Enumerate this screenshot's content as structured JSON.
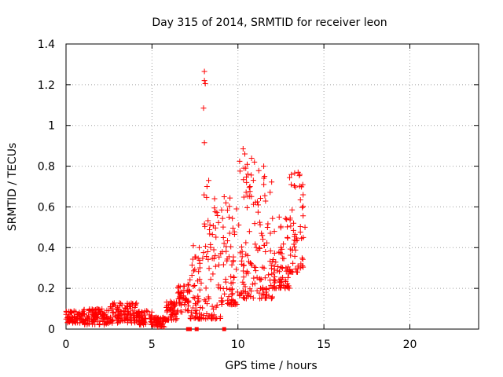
{
  "chart_data": {
    "type": "scatter",
    "title": "Day 315 of 2014, SRMTID for receiver leon",
    "xlabel": "GPS time / hours",
    "ylabel": "SRMTID / TECUs",
    "xlim": [
      0,
      24
    ],
    "ylim": [
      0,
      1.4
    ],
    "x_ticks": [
      0,
      5,
      10,
      15,
      20
    ],
    "x_tick_labels": [
      "0",
      "5",
      "10",
      "15",
      "20"
    ],
    "y_ticks": [
      0,
      0.2,
      0.4,
      0.6,
      0.8,
      1,
      1.2,
      1.4
    ],
    "y_tick_labels": [
      "0",
      "0.2",
      "0.4",
      "0.6",
      "0.8",
      "1",
      "1.2",
      "1.4"
    ],
    "grid": true,
    "marker": "plus",
    "marker_color": "#ff0000",
    "segments": [
      {
        "x_start": 0.0,
        "x_end": 1.0,
        "y_low": 0.03,
        "y_high": 0.09
      },
      {
        "x_start": 1.0,
        "x_end": 2.5,
        "y_low": 0.02,
        "y_high": 0.1
      },
      {
        "x_start": 2.5,
        "x_end": 4.2,
        "y_low": 0.03,
        "y_high": 0.13
      },
      {
        "x_start": 4.2,
        "x_end": 5.0,
        "y_low": 0.02,
        "y_high": 0.09
      },
      {
        "x_start": 5.0,
        "x_end": 5.8,
        "y_low": 0.01,
        "y_high": 0.06
      },
      {
        "x_start": 5.8,
        "x_end": 6.5,
        "y_low": 0.04,
        "y_high": 0.14
      },
      {
        "x_start": 6.5,
        "x_end": 7.2,
        "y_low": 0.08,
        "y_high": 0.22
      },
      {
        "x_start": 7.2,
        "x_end": 8.0,
        "y_low": 0.05,
        "y_high": 0.45
      },
      {
        "x_start": 8.0,
        "x_end": 9.0,
        "y_low": 0.05,
        "y_high": 0.7
      },
      {
        "x_start": 9.0,
        "x_end": 10.0,
        "y_low": 0.12,
        "y_high": 0.65
      },
      {
        "x_start": 10.0,
        "x_end": 11.0,
        "y_low": 0.15,
        "y_high": 0.85
      },
      {
        "x_start": 11.0,
        "x_end": 12.0,
        "y_low": 0.15,
        "y_high": 0.78
      },
      {
        "x_start": 12.0,
        "x_end": 13.0,
        "y_low": 0.2,
        "y_high": 0.55
      },
      {
        "x_start": 13.0,
        "x_end": 13.8,
        "y_low": 0.28,
        "y_high": 0.77
      }
    ],
    "highlights": [
      {
        "x": 8.05,
        "y": 1.265
      },
      {
        "x": 8.05,
        "y": 1.22
      },
      {
        "x": 8.1,
        "y": 1.205
      },
      {
        "x": 8.0,
        "y": 1.085
      },
      {
        "x": 8.05,
        "y": 0.915
      },
      {
        "x": 8.3,
        "y": 0.73
      },
      {
        "x": 8.2,
        "y": 0.7
      },
      {
        "x": 10.3,
        "y": 0.885
      },
      {
        "x": 10.4,
        "y": 0.86
      },
      {
        "x": 10.35,
        "y": 0.79
      },
      {
        "x": 11.5,
        "y": 0.8
      },
      {
        "x": 11.55,
        "y": 0.75
      },
      {
        "x": 13.5,
        "y": 0.77
      },
      {
        "x": 13.6,
        "y": 0.76
      },
      {
        "x": 9.2,
        "y": 0.65
      },
      {
        "x": 9.3,
        "y": 0.62
      },
      {
        "x": 10.7,
        "y": 0.7
      },
      {
        "x": 12.4,
        "y": 0.55
      },
      {
        "x": 13.9,
        "y": 0.5
      },
      {
        "x": 13.8,
        "y": 0.45
      }
    ],
    "zero_markers": [
      {
        "x": 7.1,
        "y": 0.0
      },
      {
        "x": 7.2,
        "y": 0.0
      },
      {
        "x": 7.6,
        "y": 0.0
      },
      {
        "x": 9.2,
        "y": 0.0
      }
    ]
  }
}
